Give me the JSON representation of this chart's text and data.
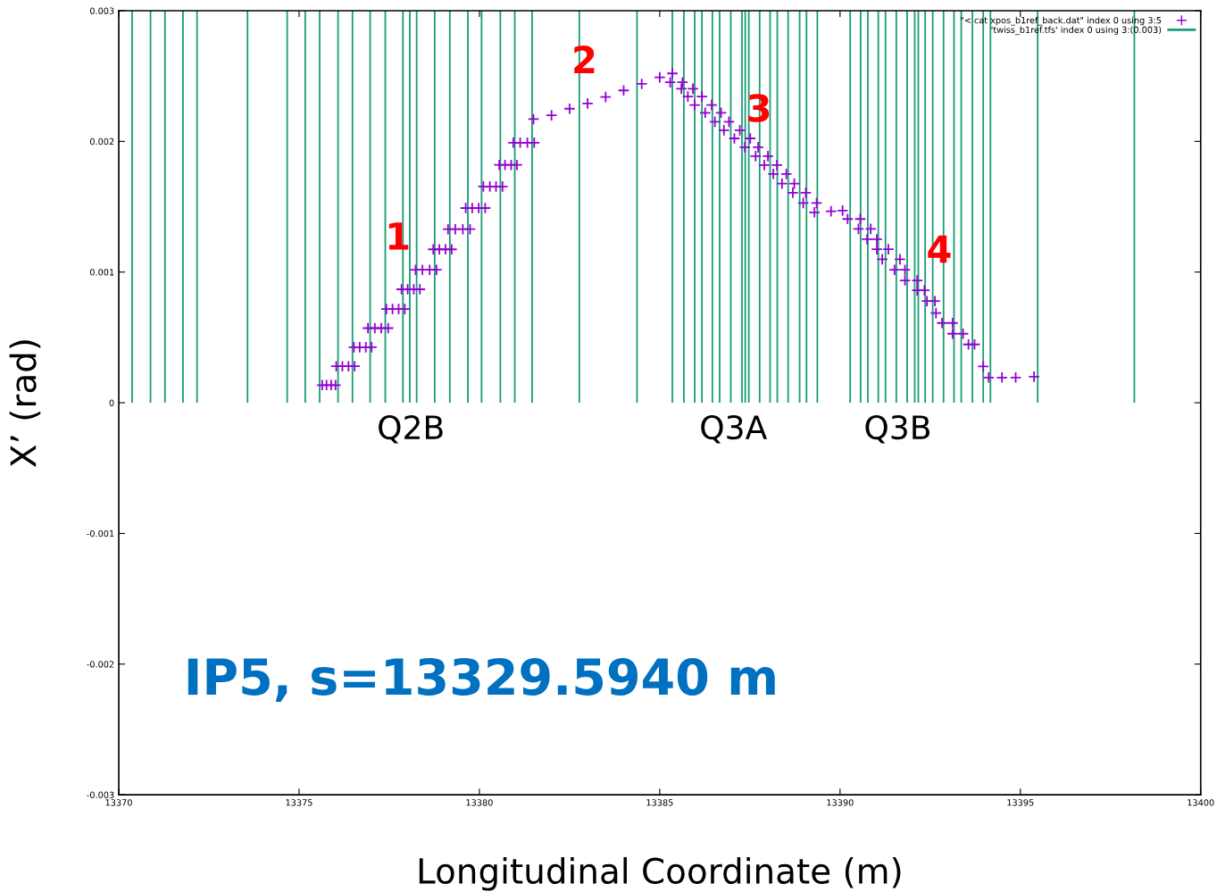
{
  "chart_data": {
    "type": "scatter",
    "xlabel": "Longitudinal Coordinate (m)",
    "ylabel": "X’ (rad)",
    "xlim": [
      13370,
      13400
    ],
    "xticks": [
      13370,
      13375,
      13380,
      13385,
      13390,
      13395,
      13400
    ],
    "ylim": [
      -0.003,
      0.003
    ],
    "yticks": [
      -0.003,
      -0.002,
      -0.001,
      0,
      0.001,
      0.002,
      0.003
    ],
    "grid": false,
    "legend": "top right",
    "marker": "cross",
    "series": [
      {
        "name": "\"< cat xpos_b1ref_back.dat\" index 0 using 3:5",
        "color": "#9400d3",
        "x": [
          13375.64,
          13375.76,
          13375.89,
          13376.01,
          13376.03,
          13376.2,
          13376.37,
          13376.54,
          13376.52,
          13376.68,
          13376.85,
          13377.01,
          13376.91,
          13377.1,
          13377.28,
          13377.47,
          13377.42,
          13377.59,
          13377.76,
          13377.93,
          13377.84,
          13378.01,
          13378.18,
          13378.35,
          13378.23,
          13378.42,
          13378.62,
          13378.81,
          13378.72,
          13378.89,
          13379.06,
          13379.23,
          13379.13,
          13379.33,
          13379.54,
          13379.74,
          13379.62,
          13379.8,
          13379.98,
          13380.16,
          13380.11,
          13380.29,
          13380.46,
          13380.64,
          13380.55,
          13380.71,
          13380.88,
          13381.04,
          13380.94,
          13381.13,
          13381.33,
          13381.52,
          13381.5,
          13382.0,
          13382.5,
          13383.0,
          13383.5,
          13384.0,
          13384.5,
          13385.0,
          13385.35,
          13385.29,
          13385.63,
          13385.6,
          13385.92,
          13385.78,
          13386.17,
          13385.97,
          13386.44,
          13386.26,
          13386.7,
          13386.53,
          13386.92,
          13386.78,
          13387.22,
          13387.07,
          13387.51,
          13387.36,
          13387.73,
          13387.66,
          13388.0,
          13387.9,
          13388.25,
          13388.15,
          13388.51,
          13388.39,
          13388.73,
          13388.69,
          13389.05,
          13388.98,
          13389.35,
          13389.29,
          13389.75,
          13390.07,
          13390.21,
          13390.56,
          13390.51,
          13390.85,
          13390.75,
          13391.02,
          13391.02,
          13391.34,
          13391.17,
          13391.66,
          13391.51,
          13391.8,
          13391.8,
          13392.14,
          13392.14,
          13392.34,
          13392.41,
          13392.63,
          13392.66,
          13392.83,
          13393.12,
          13393.12,
          13393.41,
          13393.56,
          13393.73,
          13393.97,
          13394.12,
          13394.49,
          13394.87,
          13395.38
        ],
        "values": [
          0.000135,
          0.000135,
          0.000135,
          0.000135,
          0.000279,
          0.000279,
          0.000279,
          0.000279,
          0.000425,
          0.000425,
          0.000425,
          0.000425,
          0.000571,
          0.000571,
          0.000571,
          0.000571,
          0.000717,
          0.000717,
          0.000717,
          0.000717,
          0.000868,
          0.000868,
          0.000868,
          0.000868,
          0.001017,
          0.001017,
          0.001017,
          0.001017,
          0.001174,
          0.001174,
          0.001174,
          0.001174,
          0.001328,
          0.001328,
          0.001328,
          0.001328,
          0.00149,
          0.00149,
          0.00149,
          0.00149,
          0.001655,
          0.001655,
          0.001655,
          0.001655,
          0.00182,
          0.00182,
          0.00182,
          0.00182,
          0.00199,
          0.00199,
          0.00199,
          0.00199,
          0.00217,
          0.0022,
          0.00225,
          0.00229,
          0.00234,
          0.00239,
          0.00244,
          0.00249,
          0.00252,
          0.002452,
          0.002452,
          0.002403,
          0.002403,
          0.002343,
          0.002343,
          0.002278,
          0.002278,
          0.002219,
          0.002219,
          0.00215,
          0.00215,
          0.002085,
          0.002085,
          0.002023,
          0.002023,
          0.001955,
          0.001955,
          0.001887,
          0.001887,
          0.001819,
          0.001819,
          0.001751,
          0.001751,
          0.001677,
          0.001677,
          0.001607,
          0.001607,
          0.001528,
          0.001528,
          0.001457,
          0.001465,
          0.00147,
          0.001406,
          0.001406,
          0.00133,
          0.00133,
          0.001251,
          0.001251,
          0.001175,
          0.001175,
          0.001098,
          0.001098,
          0.001017,
          0.001017,
          0.000936,
          0.000936,
          0.00086,
          0.00086,
          0.000778,
          0.000778,
          0.000686,
          0.00061,
          0.00061,
          0.000528,
          0.000528,
          0.000446,
          0.000446,
          0.000278,
          0.000193,
          0.000193,
          0.000193,
          0.000199
        ]
      },
      {
        "name": "'twiss_b1ref.tfs' index 0 using 3:(0.003)",
        "type": "bar",
        "color": "#1a9e77",
        "x": [
          13370.37,
          13370.88,
          13371.28,
          13371.78,
          13372.17,
          13373.57,
          13374.67,
          13375.17,
          13375.57,
          13376.08,
          13376.48,
          13376.97,
          13377.39,
          13377.88,
          13378.07,
          13378.26,
          13378.76,
          13379.18,
          13379.68,
          13380.06,
          13380.58,
          13380.98,
          13381.46,
          13382.77,
          13384.37,
          13385.35,
          13385.67,
          13385.97,
          13386.17,
          13386.46,
          13386.66,
          13386.97,
          13387.28,
          13387.37,
          13387.47,
          13387.77,
          13388.06,
          13388.26,
          13388.56,
          13388.88,
          13389.07,
          13389.37,
          13390.28,
          13390.57,
          13390.77,
          13391.06,
          13391.26,
          13391.56,
          13391.86,
          13392.07,
          13392.17,
          13392.36,
          13392.57,
          13392.87,
          13393.16,
          13393.36,
          13393.67,
          13393.97,
          13394.17,
          13395.48,
          13398.16
        ],
        "values": [
          0.003,
          0.003,
          0.003,
          0.003,
          0.003,
          0.003,
          0.003,
          0.003,
          0.003,
          0.003,
          0.003,
          0.003,
          0.003,
          0.003,
          0.003,
          0.003,
          0.003,
          0.003,
          0.003,
          0.003,
          0.003,
          0.003,
          0.003,
          0.003,
          0.003,
          0.003,
          0.003,
          0.003,
          0.003,
          0.003,
          0.003,
          0.003,
          0.003,
          0.003,
          0.003,
          0.003,
          0.003,
          0.003,
          0.003,
          0.003,
          0.003,
          0.003,
          0.003,
          0.003,
          0.003,
          0.003,
          0.003,
          0.003,
          0.003,
          0.003,
          0.003,
          0.003,
          0.003,
          0.003,
          0.003,
          0.003,
          0.003,
          0.003,
          0.003,
          0.003,
          0.003
        ]
      }
    ],
    "annotations": [
      {
        "text": "1",
        "x": 13377.74,
        "y": 0.00125
      },
      {
        "text": "2",
        "x": 13382.91,
        "y": 0.0026
      },
      {
        "text": "3",
        "x": 13387.75,
        "y": 0.00223
      },
      {
        "text": "4",
        "x": 13392.75,
        "y": 0.00115
      },
      "Q2B",
      "Q3A",
      "Q3B",
      "IP5, s=13329.5940 m"
    ]
  }
}
